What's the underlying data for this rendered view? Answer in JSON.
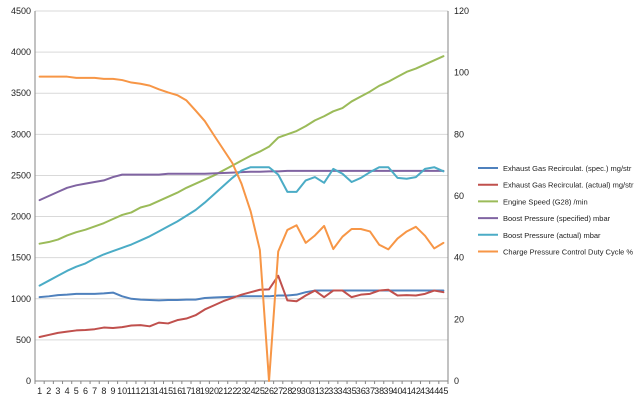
{
  "chart_data": {
    "type": "line",
    "title": "",
    "xlabel": "",
    "ylabel": "",
    "ylabel_right": "",
    "grid": true,
    "legend_position": "right",
    "x": [
      1,
      2,
      3,
      4,
      5,
      6,
      7,
      8,
      9,
      10,
      11,
      12,
      13,
      14,
      15,
      16,
      17,
      18,
      19,
      20,
      21,
      22,
      23,
      24,
      25,
      26,
      27,
      28,
      29,
      30,
      31,
      32,
      33,
      34,
      35,
      36,
      37,
      38,
      39,
      40,
      41,
      42,
      43,
      44,
      45
    ],
    "ylim": [
      0,
      4500
    ],
    "yticks": [
      0,
      500,
      1000,
      1500,
      2000,
      2500,
      3000,
      3500,
      4000,
      4500
    ],
    "ylim_right": [
      0,
      120
    ],
    "yticks_right": [
      0,
      20,
      40,
      60,
      80,
      100,
      120
    ],
    "series": [
      {
        "name": "Exhaust Gas Recirculat. (spec.)  mg/str",
        "color": "#4f81bd",
        "axis": "left",
        "values": [
          1020,
          1030,
          1045,
          1050,
          1060,
          1060,
          1060,
          1065,
          1075,
          1030,
          1000,
          990,
          985,
          980,
          985,
          985,
          990,
          990,
          1010,
          1015,
          1020,
          1025,
          1030,
          1030,
          1030,
          1030,
          1040,
          1040,
          1050,
          1080,
          1100,
          1100,
          1100,
          1100,
          1100,
          1100,
          1100,
          1100,
          1100,
          1100,
          1100,
          1100,
          1100,
          1100,
          1100
        ]
      },
      {
        "name": "Exhaust Gas Recirculat. (actual)  mg/str",
        "color": "#c0504d",
        "axis": "left",
        "values": [
          535,
          560,
          585,
          600,
          615,
          620,
          630,
          650,
          645,
          655,
          675,
          680,
          665,
          710,
          700,
          740,
          760,
          800,
          870,
          920,
          970,
          1010,
          1050,
          1080,
          1110,
          1115,
          1280,
          980,
          970,
          1040,
          1100,
          1020,
          1100,
          1100,
          1020,
          1050,
          1060,
          1100,
          1110,
          1040,
          1045,
          1040,
          1060,
          1100,
          1080
        ]
      },
      {
        "name": "Engine Speed (G28)  /min",
        "color": "#9bbb59",
        "axis": "left",
        "values": [
          1670,
          1690,
          1720,
          1770,
          1810,
          1840,
          1880,
          1920,
          1970,
          2020,
          2050,
          2110,
          2140,
          2190,
          2240,
          2290,
          2350,
          2400,
          2450,
          2500,
          2560,
          2620,
          2680,
          2740,
          2790,
          2850,
          2960,
          3000,
          3040,
          3100,
          3170,
          3220,
          3280,
          3320,
          3400,
          3460,
          3520,
          3590,
          3640,
          3700,
          3760,
          3800,
          3850,
          3900,
          3950
        ]
      },
      {
        "name": "Boost Pressure (specified)  mbar",
        "color": "#8064a2",
        "axis": "left",
        "values": [
          2200,
          2250,
          2300,
          2350,
          2380,
          2400,
          2420,
          2440,
          2480,
          2510,
          2510,
          2510,
          2510,
          2510,
          2520,
          2520,
          2520,
          2520,
          2520,
          2525,
          2530,
          2535,
          2540,
          2545,
          2545,
          2550,
          2550,
          2555,
          2555,
          2555,
          2555,
          2555,
          2555,
          2555,
          2555,
          2555,
          2555,
          2555,
          2555,
          2555,
          2555,
          2555,
          2555,
          2555,
          2555
        ]
      },
      {
        "name": "Boost Pressure (actual)  mbar",
        "color": "#4bacc6",
        "axis": "left",
        "values": [
          1160,
          1220,
          1280,
          1340,
          1390,
          1430,
          1490,
          1540,
          1580,
          1620,
          1660,
          1710,
          1760,
          1820,
          1880,
          1940,
          2010,
          2080,
          2170,
          2270,
          2370,
          2470,
          2560,
          2600,
          2600,
          2600,
          2510,
          2300,
          2300,
          2440,
          2480,
          2410,
          2580,
          2520,
          2420,
          2470,
          2540,
          2600,
          2600,
          2470,
          2460,
          2480,
          2580,
          2600,
          2550
        ]
      },
      {
        "name": "Charge Pressure Control Duty Cycle  %",
        "color": "#f79646",
        "axis": "right",
        "values": [
          98.7,
          98.7,
          98.7,
          98.7,
          98.3,
          98.3,
          98.3,
          98,
          98,
          97.6,
          96.8,
          96.4,
          95.8,
          94.6,
          93.6,
          92.7,
          91,
          87.7,
          84.3,
          79.7,
          75.2,
          70.7,
          64,
          55,
          42.5,
          0,
          42,
          49,
          50.5,
          44.8,
          47.2,
          50.3,
          42.8,
          46.8,
          49.3,
          49.3,
          48.5,
          44.2,
          42.7,
          46.2,
          48.5,
          50,
          47.1,
          43,
          44.8
        ]
      }
    ]
  }
}
